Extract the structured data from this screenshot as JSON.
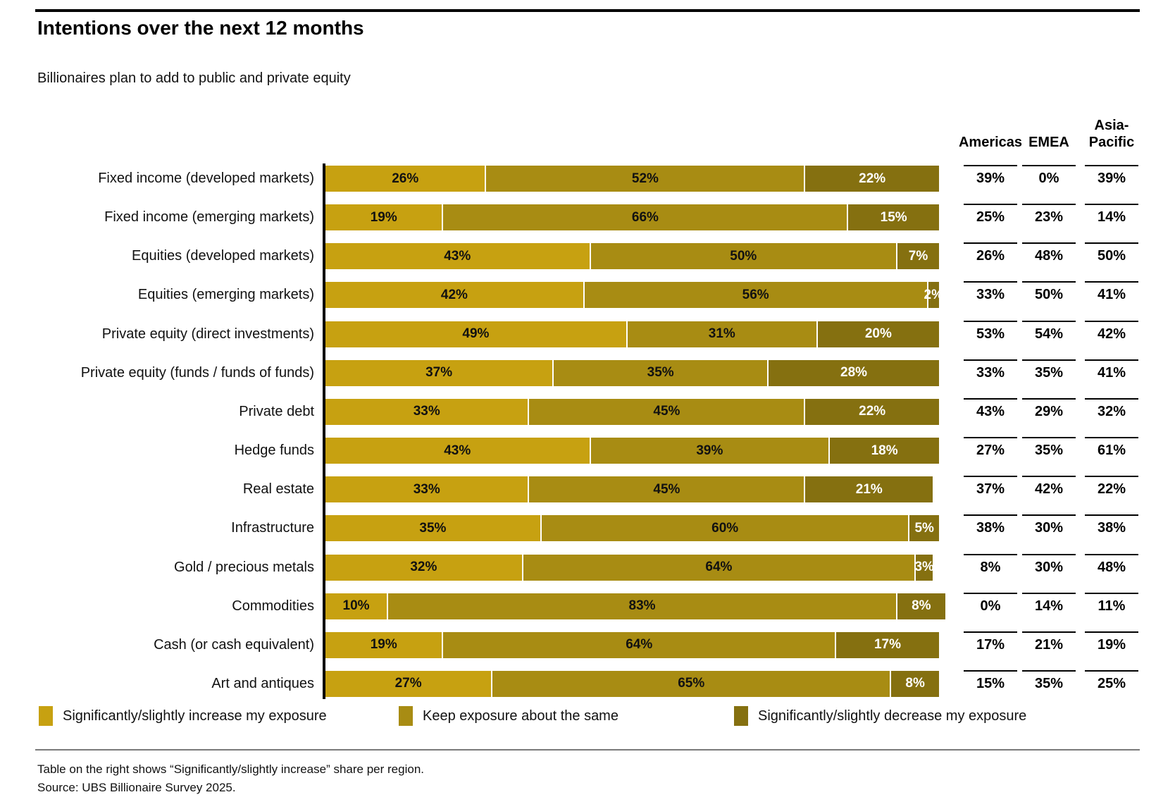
{
  "header": {
    "title": "Intentions over the next 12 months",
    "subtitle": "Billionaires plan to add to public and private equity"
  },
  "chart_data": {
    "type": "bar",
    "orientation": "horizontal",
    "stacked": true,
    "unit": "%",
    "x_range": [
      0,
      100
    ],
    "series_names": [
      "Significantly/slightly increase my exposure",
      "Keep exposure about the same",
      "Significantly/slightly decrease my exposure"
    ],
    "colors": [
      "#C7A111",
      "#A88C13",
      "#857010"
    ],
    "label_colors": [
      "#111111",
      "#111111",
      "#FFFFFF"
    ],
    "region_columns": [
      "Americas",
      "EMEA",
      "Asia-Pacific"
    ],
    "rows": [
      {
        "label": "Fixed income (developed markets)",
        "values": [
          26,
          52,
          22
        ],
        "regions": [
          39,
          0,
          39
        ]
      },
      {
        "label": "Fixed income (emerging markets)",
        "values": [
          19,
          66,
          15
        ],
        "regions": [
          25,
          23,
          14
        ]
      },
      {
        "label": "Equities (developed markets)",
        "values": [
          43,
          50,
          7
        ],
        "regions": [
          26,
          48,
          50
        ]
      },
      {
        "label": "Equities (emerging markets)",
        "values": [
          42,
          56,
          2
        ],
        "regions": [
          33,
          50,
          41
        ]
      },
      {
        "label": "Private equity (direct investments)",
        "values": [
          49,
          31,
          20
        ],
        "regions": [
          53,
          54,
          42
        ]
      },
      {
        "label": "Private equity (funds / funds of funds)",
        "values": [
          37,
          35,
          28
        ],
        "regions": [
          33,
          35,
          41
        ]
      },
      {
        "label": "Private debt",
        "values": [
          33,
          45,
          22
        ],
        "regions": [
          43,
          29,
          32
        ]
      },
      {
        "label": "Hedge funds",
        "values": [
          43,
          39,
          18
        ],
        "regions": [
          27,
          35,
          61
        ]
      },
      {
        "label": "Real estate",
        "values": [
          33,
          45,
          21
        ],
        "regions": [
          37,
          42,
          22
        ]
      },
      {
        "label": "Infrastructure",
        "values": [
          35,
          60,
          5
        ],
        "regions": [
          38,
          30,
          38
        ]
      },
      {
        "label": "Gold / precious metals",
        "values": [
          32,
          64,
          3
        ],
        "regions": [
          8,
          30,
          48
        ]
      },
      {
        "label": "Commodities",
        "values": [
          10,
          83,
          8
        ],
        "regions": [
          0,
          14,
          11
        ]
      },
      {
        "label": "Cash (or cash equivalent)",
        "values": [
          19,
          64,
          17
        ],
        "regions": [
          17,
          21,
          19
        ]
      },
      {
        "label": "Art and antiques",
        "values": [
          27,
          65,
          8
        ],
        "regions": [
          15,
          35,
          25
        ]
      }
    ]
  },
  "legend": {
    "items": [
      {
        "label": "Significantly/slightly increase my exposure"
      },
      {
        "label": "Keep exposure about the same"
      },
      {
        "label": "Significantly/slightly decrease my exposure"
      }
    ]
  },
  "footnotes": {
    "line1": "Table on the right shows “Significantly/slightly increase” share per region.",
    "line2": "Source: UBS Billionaire Survey 2025."
  }
}
